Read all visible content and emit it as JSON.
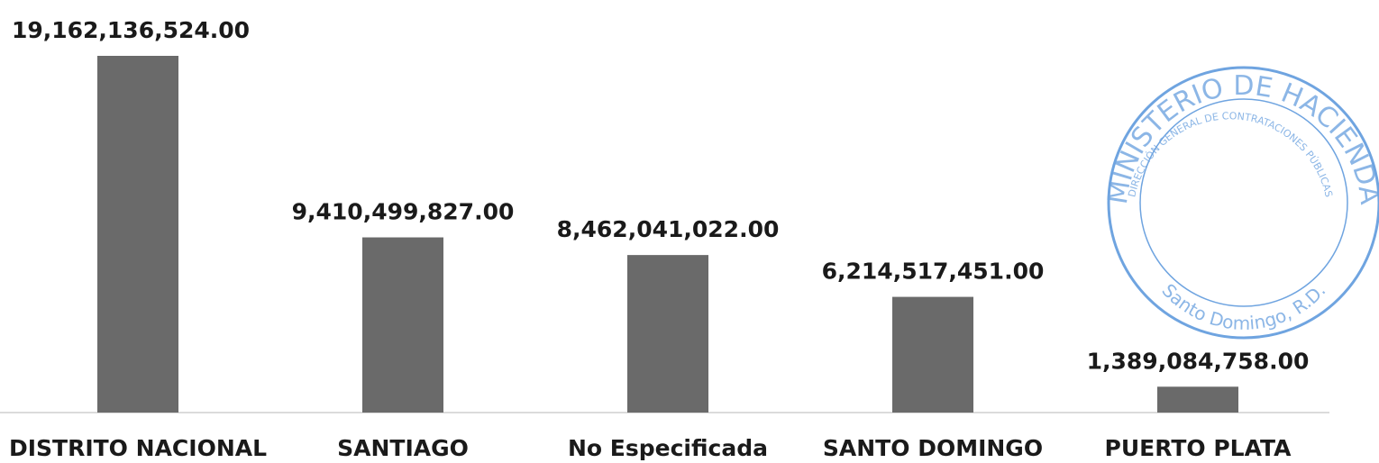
{
  "chart_data": {
    "type": "bar",
    "categories": [
      "DISTRITO NACIONAL",
      "SANTIAGO",
      "No Especificada",
      "SANTO DOMINGO",
      "PUERTO PLATA"
    ],
    "values": [
      19162136524.0,
      9410499827.0,
      8462041022.0,
      6214517451.0,
      1389084758.0
    ],
    "value_labels": [
      "19,162,136,524.00",
      "9,410,499,827.00",
      "8,462,041,022.00",
      "6,214,517,451.00",
      "1,389,084,758.00"
    ],
    "color": "#6a6a6a"
  },
  "stamp": {
    "outer": "MINISTERIO DE HACIENDA",
    "inner": "DIRECCIÓN GENERAL DE CONTRATACIONES PÚBLICAS",
    "bottom": "Santo Domingo, R.D."
  }
}
